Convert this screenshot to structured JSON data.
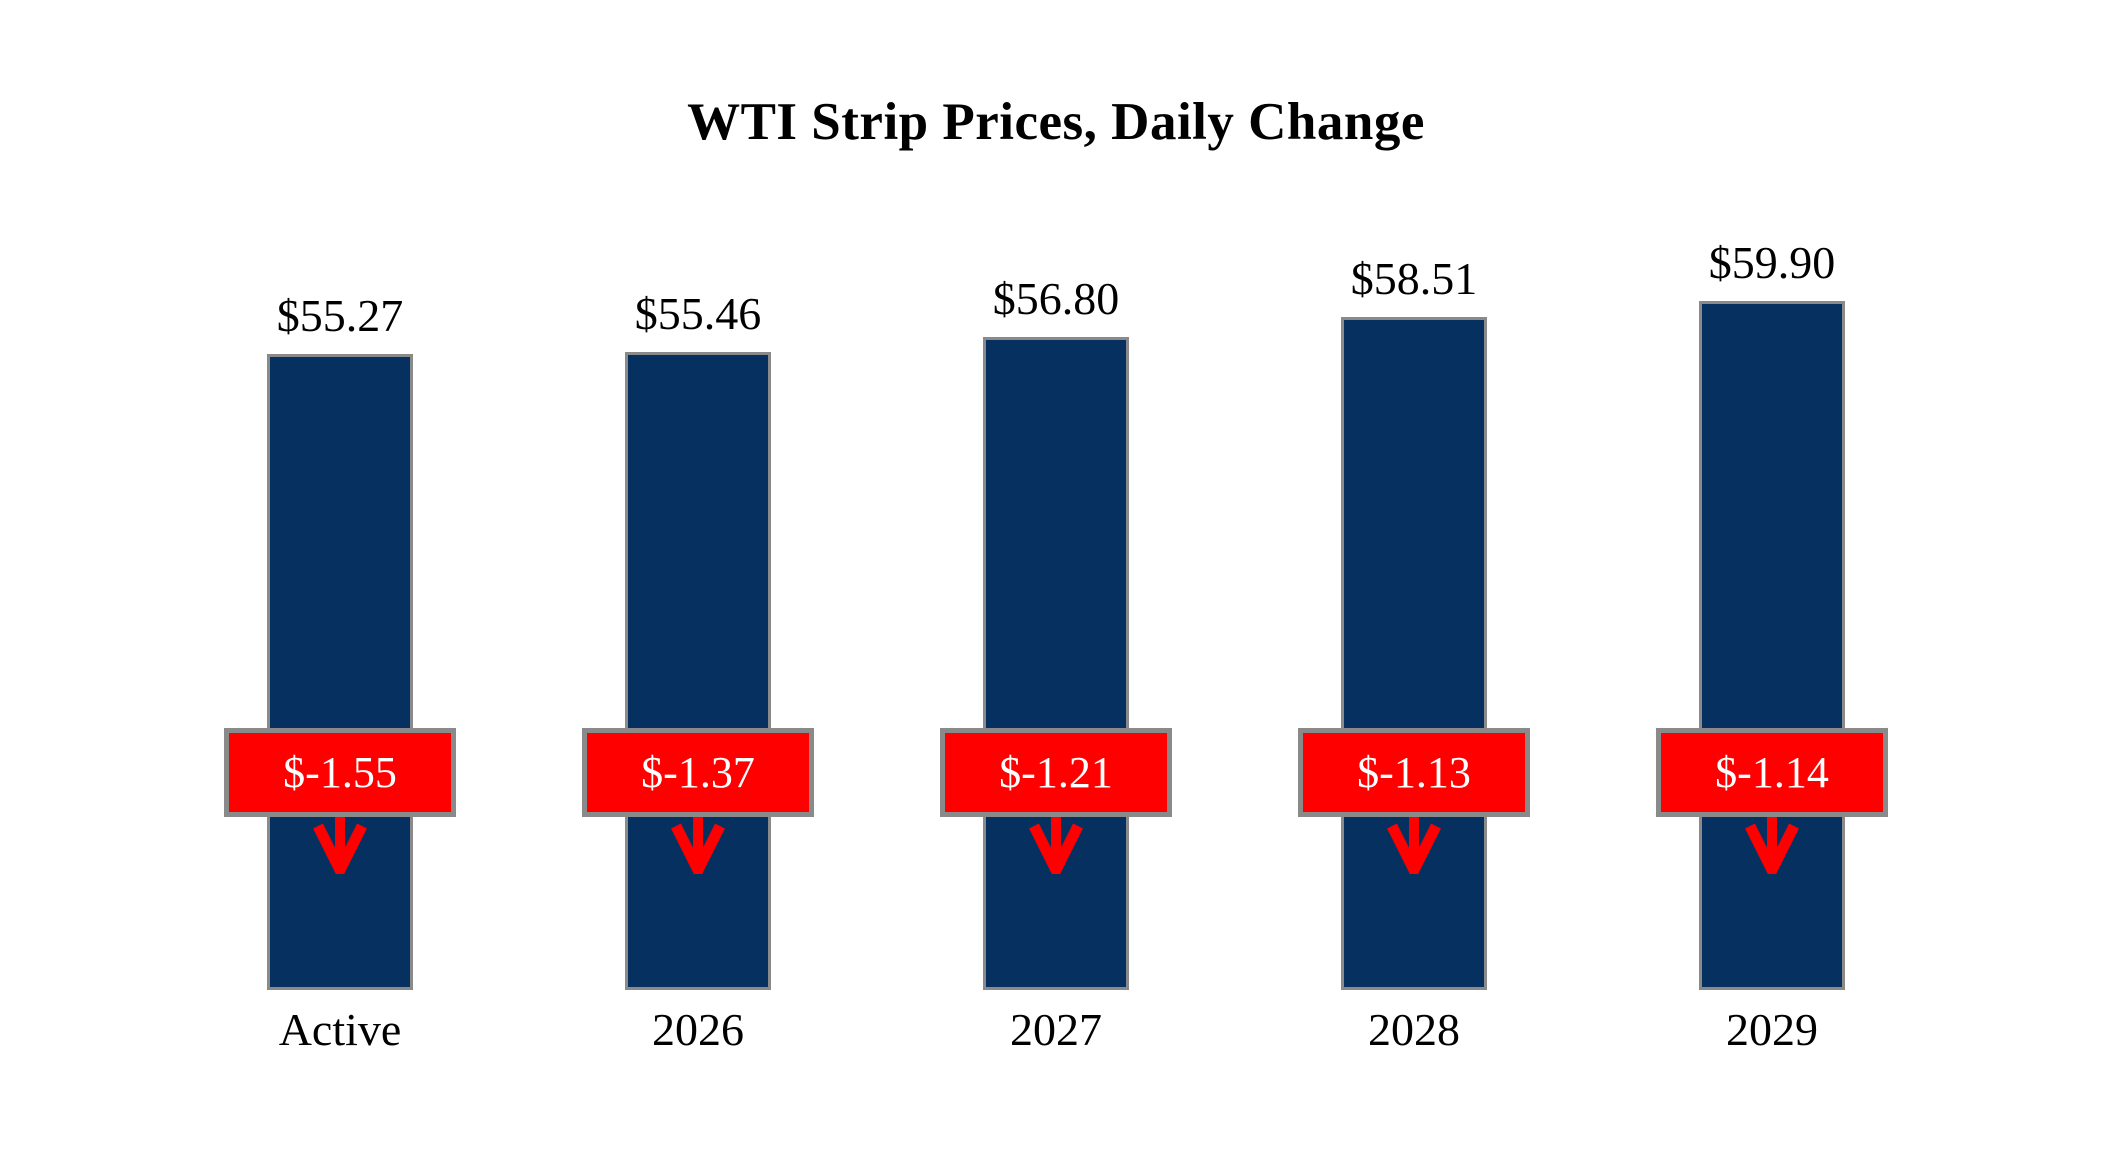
{
  "title": "WTI Strip Prices, Daily Change",
  "colors": {
    "bar_fill": "#063060",
    "bar_border": "#8a8a8a",
    "badge_fill": "#ff0000",
    "badge_border": "#8a8a8a",
    "badge_text": "#ffffff",
    "arrow": "#ff0000",
    "label_text": "#000000",
    "background": "#ffffff"
  },
  "chart_data": {
    "type": "bar",
    "title": "WTI Strip Prices, Daily Change",
    "categories": [
      "Active",
      "2026",
      "2027",
      "2028",
      "2029"
    ],
    "series": [
      {
        "name": "Strip Price",
        "values": [
          55.27,
          55.46,
          56.8,
          58.51,
          59.9
        ],
        "labels": [
          "$55.27",
          "$55.46",
          "$56.80",
          "$58.51",
          "$59.90"
        ]
      },
      {
        "name": "Daily Change",
        "values": [
          -1.55,
          -1.37,
          -1.21,
          -1.13,
          -1.14
        ],
        "labels": [
          "$-1.55",
          "$-1.37",
          "$-1.21",
          "$-1.13",
          "$-1.14"
        ]
      }
    ],
    "xlabel": "",
    "ylabel": "",
    "ylim": [
      0,
      62
    ],
    "grid": false,
    "legend": false,
    "annotations": "red badge per bar shows daily change with downward red arrow"
  }
}
